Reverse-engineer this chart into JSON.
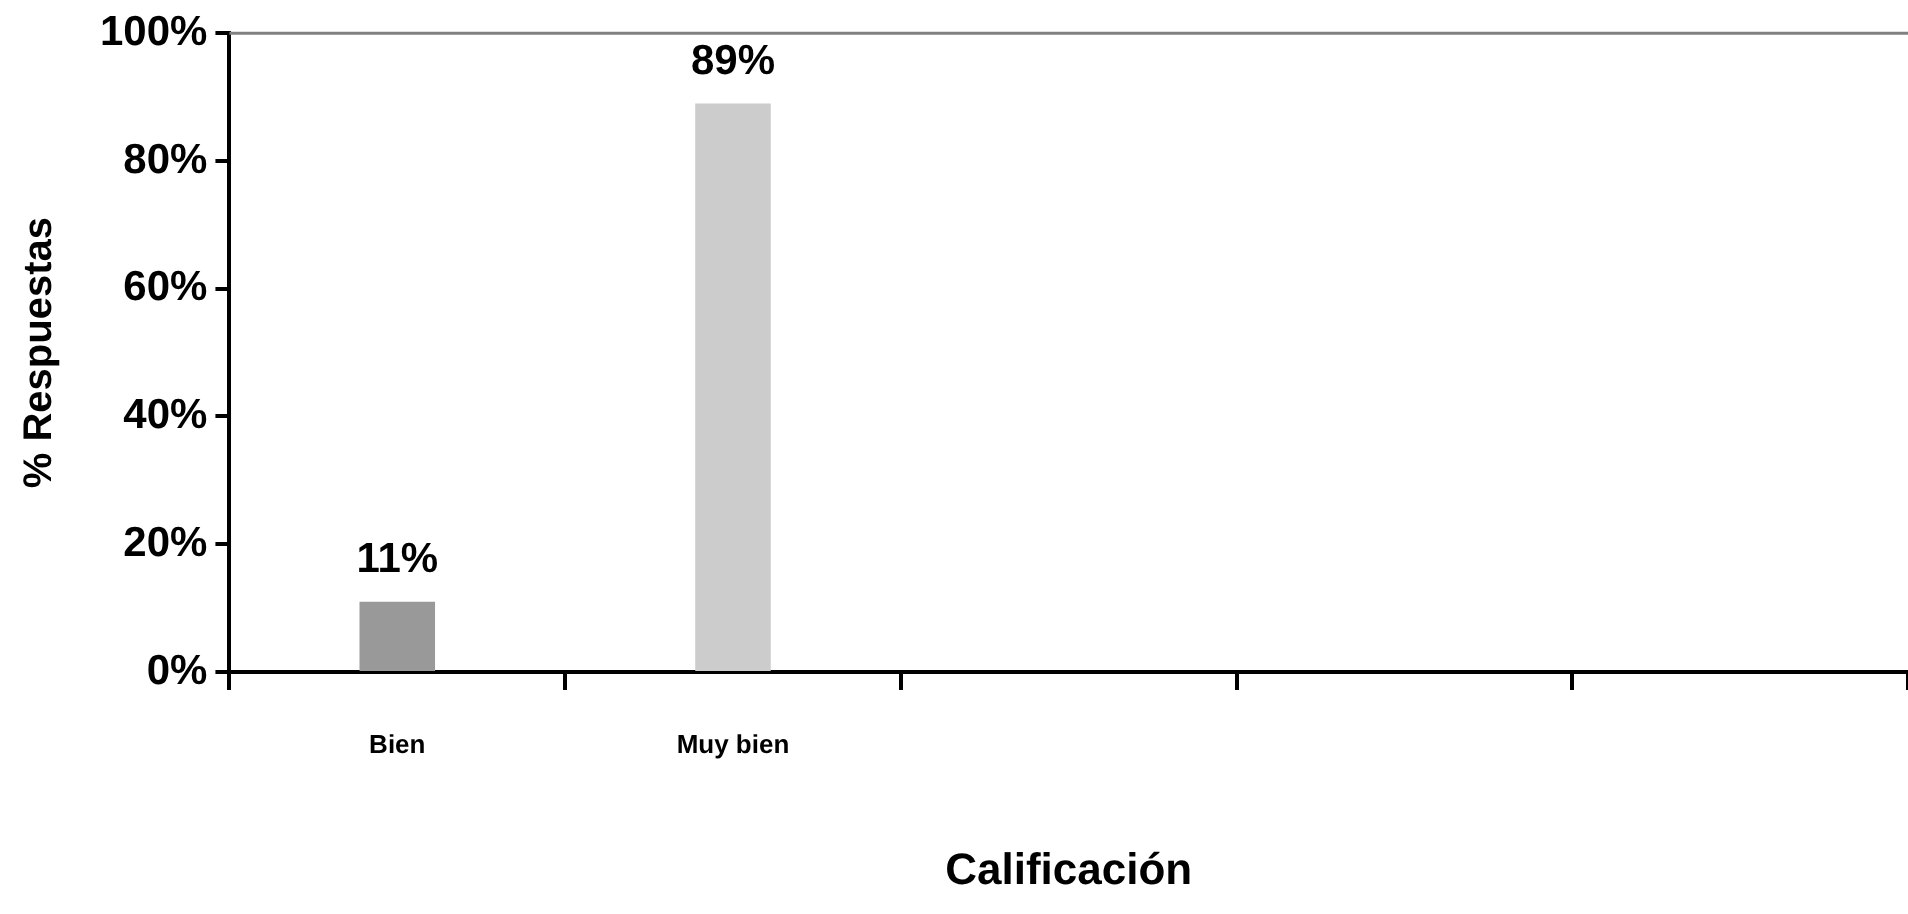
{
  "chart_data": {
    "type": "bar",
    "xlabel": "Calificación",
    "ylabel": "% Respuestas",
    "categories": [
      "Bien",
      "Muy bien",
      null,
      null,
      null
    ],
    "values": [
      11,
      89,
      null,
      null,
      null
    ],
    "colors": [
      "#999999",
      "#cccccc",
      "#cccccc",
      "#cccccc",
      "#cccccc"
    ],
    "value_labels": [
      "11%",
      "89%",
      null,
      null,
      null
    ],
    "ylim": [
      0,
      100
    ],
    "yticks": [
      {
        "value": 0,
        "label": "0%"
      },
      {
        "value": 20,
        "label": "20%"
      },
      {
        "value": 40,
        "label": "40%"
      },
      {
        "value": 60,
        "label": "60%"
      },
      {
        "value": 80,
        "label": "80%"
      },
      {
        "value": 100,
        "label": "100%"
      }
    ],
    "grid": false,
    "legend": false
  }
}
